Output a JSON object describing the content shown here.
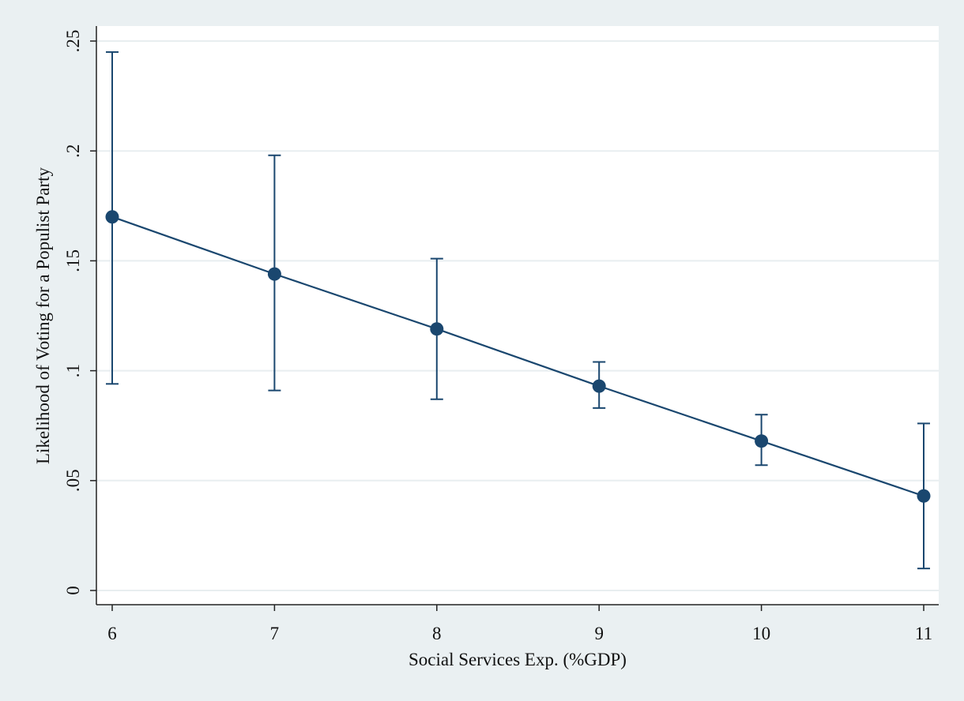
{
  "chart_data": {
    "type": "line",
    "title": "",
    "xlabel": "Social Services Exp. (%GDP)",
    "ylabel": "Likelihood of Voting for a Populist Party",
    "x": [
      6,
      7,
      8,
      9,
      10,
      11
    ],
    "series": [
      {
        "values": [
          0.17,
          0.144,
          0.119,
          0.093,
          0.068,
          0.043
        ],
        "ci_low": [
          0.094,
          0.091,
          0.087,
          0.083,
          0.057,
          0.01
        ],
        "ci_high": [
          0.245,
          0.198,
          0.151,
          0.104,
          0.08,
          0.076
        ]
      }
    ],
    "xlim": [
      5.9,
      11.1
    ],
    "ylim": [
      0,
      0.25
    ],
    "xticks": [
      6,
      7,
      8,
      9,
      10,
      11
    ],
    "xtick_labels": [
      "6",
      "7",
      "8",
      "9",
      "10",
      "11"
    ],
    "yticks": [
      0,
      0.05,
      0.1,
      0.15,
      0.2,
      0.25
    ],
    "ytick_labels": [
      "0",
      ".05",
      ".1",
      ".15",
      ".2",
      ".25"
    ],
    "grid": "horizontal",
    "colors": {
      "series": "#1a476f",
      "plot_background": "#ffffff",
      "outer_background": "#eaf0f2",
      "grid": "#e8eef0"
    }
  }
}
